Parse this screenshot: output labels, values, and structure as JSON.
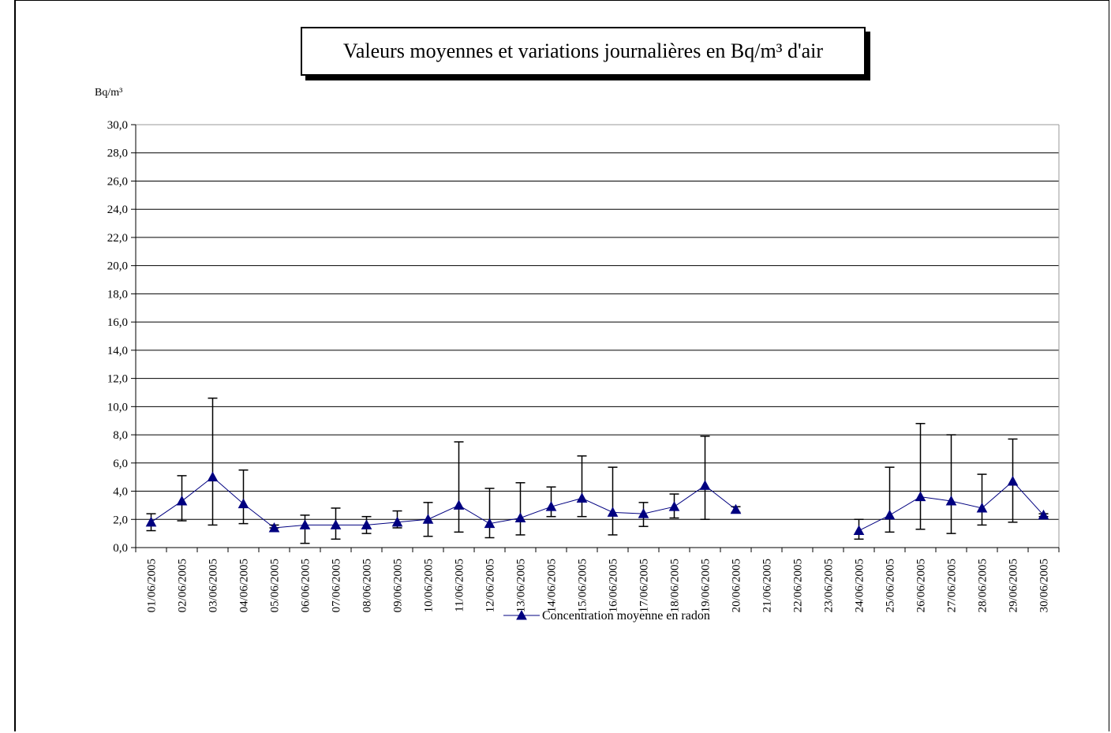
{
  "chart_data": {
    "type": "line",
    "title": "Valeurs moyennes et variations journalières en Bq/m³ d'air",
    "ylabel": "Bq/m³",
    "xlabel": "",
    "ylim": [
      0,
      30
    ],
    "y_ticks": [
      "0,0",
      "2,0",
      "4,0",
      "6,0",
      "8,0",
      "10,0",
      "12,0",
      "14,0",
      "16,0",
      "18,0",
      "20,0",
      "22,0",
      "24,0",
      "26,0",
      "28,0",
      "30,0"
    ],
    "grid": true,
    "legend_position": "bottom",
    "line_color": "#000080",
    "categories": [
      "01/06/2005",
      "02/06/2005",
      "03/06/2005",
      "04/06/2005",
      "05/06/2005",
      "06/06/2005",
      "07/06/2005",
      "08/06/2005",
      "09/06/2005",
      "10/06/2005",
      "11/06/2005",
      "12/06/2005",
      "13/06/2005",
      "14/06/2005",
      "15/06/2005",
      "16/06/2005",
      "17/06/2005",
      "18/06/2005",
      "19/06/2005",
      "20/06/2005",
      "21/06/2005",
      "22/06/2005",
      "23/06/2005",
      "24/06/2005",
      "25/06/2005",
      "26/06/2005",
      "27/06/2005",
      "28/06/2005",
      "29/06/2005",
      "30/06/2005"
    ],
    "series": [
      {
        "name": "Concentration moyenne en radon",
        "values": [
          1.8,
          3.3,
          5.0,
          3.1,
          1.4,
          1.6,
          1.6,
          1.6,
          1.8,
          2.0,
          3.0,
          1.7,
          2.1,
          2.9,
          3.5,
          2.5,
          2.4,
          2.9,
          4.4,
          2.7,
          null,
          null,
          null,
          1.2,
          2.3,
          3.6,
          3.3,
          2.8,
          4.7,
          2.3
        ],
        "min": [
          1.2,
          1.9,
          1.6,
          1.7,
          1.4,
          0.3,
          0.6,
          1.0,
          1.4,
          0.8,
          1.1,
          0.7,
          0.9,
          2.2,
          2.2,
          0.9,
          1.5,
          2.1,
          2.0,
          2.5,
          null,
          null,
          null,
          0.6,
          1.1,
          1.3,
          1.0,
          1.6,
          1.8,
          2.2
        ],
        "max": [
          2.4,
          5.1,
          10.6,
          5.5,
          1.6,
          2.3,
          2.8,
          2.2,
          2.6,
          3.2,
          7.5,
          4.2,
          4.6,
          4.3,
          6.5,
          5.7,
          3.2,
          3.8,
          7.9,
          2.9,
          null,
          null,
          null,
          2.0,
          5.7,
          8.8,
          8.0,
          5.2,
          7.7,
          2.4
        ]
      }
    ]
  }
}
